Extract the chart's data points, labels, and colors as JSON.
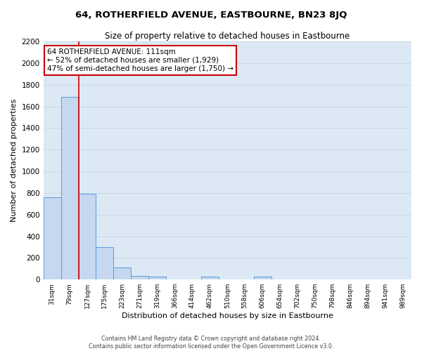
{
  "title": "64, ROTHERFIELD AVENUE, EASTBOURNE, BN23 8JQ",
  "subtitle": "Size of property relative to detached houses in Eastbourne",
  "xlabel": "Distribution of detached houses by size in Eastbourne",
  "ylabel": "Number of detached properties",
  "categories": [
    "31sqm",
    "79sqm",
    "127sqm",
    "175sqm",
    "223sqm",
    "271sqm",
    "319sqm",
    "366sqm",
    "414sqm",
    "462sqm",
    "510sqm",
    "558sqm",
    "606sqm",
    "654sqm",
    "702sqm",
    "750sqm",
    "798sqm",
    "846sqm",
    "894sqm",
    "941sqm",
    "989sqm"
  ],
  "bar_values": [
    760,
    1690,
    790,
    300,
    110,
    35,
    25,
    0,
    0,
    25,
    0,
    0,
    25,
    0,
    0,
    0,
    0,
    0,
    0,
    0,
    0
  ],
  "bar_color": "#c5d8f0",
  "bar_edge_color": "#5b9bd5",
  "vline_color": "#cc0000",
  "annotation_title": "64 ROTHERFIELD AVENUE: 111sqm",
  "annotation_line1": "← 52% of detached houses are smaller (1,929)",
  "annotation_line2": "47% of semi-detached houses are larger (1,750) →",
  "annotation_box_color": "#ffffff",
  "annotation_box_edge": "#cc0000",
  "ylim": [
    0,
    2200
  ],
  "yticks": [
    0,
    200,
    400,
    600,
    800,
    1000,
    1200,
    1400,
    1600,
    1800,
    2000,
    2200
  ],
  "grid_color": "#c8d8e8",
  "background_color": "#dce9f5",
  "figure_color": "#ffffff",
  "footer_line1": "Contains HM Land Registry data © Crown copyright and database right 2024.",
  "footer_line2": "Contains public sector information licensed under the Open Government Licence v3.0."
}
